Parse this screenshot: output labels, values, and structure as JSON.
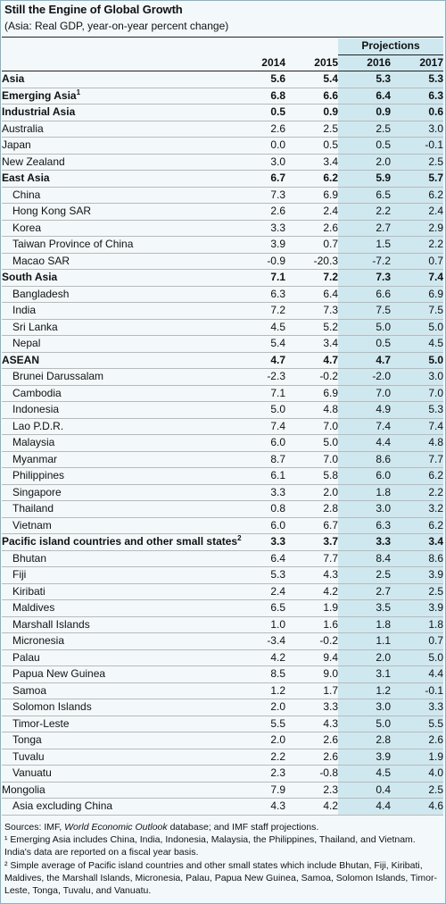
{
  "title": "Still the Engine of Global Growth",
  "subtitle": "(Asia: Real GDP, year-on-year percent change)",
  "projections_label": "Projections",
  "years": [
    "2014",
    "2015",
    "2016",
    "2017"
  ],
  "rows": [
    {
      "label": "Asia",
      "bold": true,
      "indent": false,
      "v": [
        "5.6",
        "5.4",
        "5.3",
        "5.3"
      ]
    },
    {
      "label": "Emerging Asia",
      "sup": "1",
      "bold": true,
      "indent": false,
      "v": [
        "6.8",
        "6.6",
        "6.4",
        "6.3"
      ]
    },
    {
      "label": "Industrial Asia",
      "bold": true,
      "indent": false,
      "v": [
        "0.5",
        "0.9",
        "0.9",
        "0.6"
      ]
    },
    {
      "label": "Australia",
      "bold": false,
      "indent": false,
      "v": [
        "2.6",
        "2.5",
        "2.5",
        "3.0"
      ]
    },
    {
      "label": "Japan",
      "bold": false,
      "indent": false,
      "v": [
        "0.0",
        "0.5",
        "0.5",
        "-0.1"
      ]
    },
    {
      "label": "New Zealand",
      "bold": false,
      "indent": false,
      "v": [
        "3.0",
        "3.4",
        "2.0",
        "2.5"
      ]
    },
    {
      "label": "East Asia",
      "bold": true,
      "indent": false,
      "v": [
        "6.7",
        "6.2",
        "5.9",
        "5.7"
      ]
    },
    {
      "label": "China",
      "bold": false,
      "indent": true,
      "v": [
        "7.3",
        "6.9",
        "6.5",
        "6.2"
      ]
    },
    {
      "label": "Hong Kong SAR",
      "bold": false,
      "indent": true,
      "v": [
        "2.6",
        "2.4",
        "2.2",
        "2.4"
      ]
    },
    {
      "label": "Korea",
      "bold": false,
      "indent": true,
      "v": [
        "3.3",
        "2.6",
        "2.7",
        "2.9"
      ]
    },
    {
      "label": "Taiwan Province of China",
      "bold": false,
      "indent": true,
      "v": [
        "3.9",
        "0.7",
        "1.5",
        "2.2"
      ]
    },
    {
      "label": "Macao SAR",
      "bold": false,
      "indent": true,
      "v": [
        "-0.9",
        "-20.3",
        "-7.2",
        "0.7"
      ]
    },
    {
      "label": "South Asia",
      "bold": true,
      "indent": false,
      "v": [
        "7.1",
        "7.2",
        "7.3",
        "7.4"
      ]
    },
    {
      "label": "Bangladesh",
      "bold": false,
      "indent": true,
      "v": [
        "6.3",
        "6.4",
        "6.6",
        "6.9"
      ]
    },
    {
      "label": "India",
      "bold": false,
      "indent": true,
      "v": [
        "7.2",
        "7.3",
        "7.5",
        "7.5"
      ]
    },
    {
      "label": "Sri Lanka",
      "bold": false,
      "indent": true,
      "v": [
        "4.5",
        "5.2",
        "5.0",
        "5.0"
      ]
    },
    {
      "label": "Nepal",
      "bold": false,
      "indent": true,
      "v": [
        "5.4",
        "3.4",
        "0.5",
        "4.5"
      ]
    },
    {
      "label": "ASEAN",
      "bold": true,
      "indent": false,
      "v": [
        "4.7",
        "4.7",
        "4.7",
        "5.0"
      ]
    },
    {
      "label": "Brunei Darussalam",
      "bold": false,
      "indent": true,
      "v": [
        "-2.3",
        "-0.2",
        "-2.0",
        "3.0"
      ]
    },
    {
      "label": "Cambodia",
      "bold": false,
      "indent": true,
      "v": [
        "7.1",
        "6.9",
        "7.0",
        "7.0"
      ]
    },
    {
      "label": "Indonesia",
      "bold": false,
      "indent": true,
      "v": [
        "5.0",
        "4.8",
        "4.9",
        "5.3"
      ]
    },
    {
      "label": "Lao P.D.R.",
      "bold": false,
      "indent": true,
      "v": [
        "7.4",
        "7.0",
        "7.4",
        "7.4"
      ]
    },
    {
      "label": "Malaysia",
      "bold": false,
      "indent": true,
      "v": [
        "6.0",
        "5.0",
        "4.4",
        "4.8"
      ]
    },
    {
      "label": "Myanmar",
      "bold": false,
      "indent": true,
      "v": [
        "8.7",
        "7.0",
        "8.6",
        "7.7"
      ]
    },
    {
      "label": "Philippines",
      "bold": false,
      "indent": true,
      "v": [
        "6.1",
        "5.8",
        "6.0",
        "6.2"
      ]
    },
    {
      "label": "Singapore",
      "bold": false,
      "indent": true,
      "v": [
        "3.3",
        "2.0",
        "1.8",
        "2.2"
      ]
    },
    {
      "label": "Thailand",
      "bold": false,
      "indent": true,
      "v": [
        "0.8",
        "2.8",
        "3.0",
        "3.2"
      ]
    },
    {
      "label": "Vietnam",
      "bold": false,
      "indent": true,
      "v": [
        "6.0",
        "6.7",
        "6.3",
        "6.2"
      ]
    },
    {
      "label": "Pacific island countries and other small states",
      "sup": "2",
      "bold": true,
      "indent": false,
      "v": [
        "3.3",
        "3.7",
        "3.3",
        "3.4"
      ]
    },
    {
      "label": "Bhutan",
      "bold": false,
      "indent": true,
      "v": [
        "6.4",
        "7.7",
        "8.4",
        "8.6"
      ]
    },
    {
      "label": "Fiji",
      "bold": false,
      "indent": true,
      "v": [
        "5.3",
        "4.3",
        "2.5",
        "3.9"
      ]
    },
    {
      "label": "Kiribati",
      "bold": false,
      "indent": true,
      "v": [
        "2.4",
        "4.2",
        "2.7",
        "2.5"
      ]
    },
    {
      "label": "Maldives",
      "bold": false,
      "indent": true,
      "v": [
        "6.5",
        "1.9",
        "3.5",
        "3.9"
      ]
    },
    {
      "label": "Marshall Islands",
      "bold": false,
      "indent": true,
      "v": [
        "1.0",
        "1.6",
        "1.8",
        "1.8"
      ]
    },
    {
      "label": "Micronesia",
      "bold": false,
      "indent": true,
      "v": [
        "-3.4",
        "-0.2",
        "1.1",
        "0.7"
      ]
    },
    {
      "label": "Palau",
      "bold": false,
      "indent": true,
      "v": [
        "4.2",
        "9.4",
        "2.0",
        "5.0"
      ]
    },
    {
      "label": "Papua New Guinea",
      "bold": false,
      "indent": true,
      "v": [
        "8.5",
        "9.0",
        "3.1",
        "4.4"
      ]
    },
    {
      "label": "Samoa",
      "bold": false,
      "indent": true,
      "v": [
        "1.2",
        "1.7",
        "1.2",
        "-0.1"
      ]
    },
    {
      "label": "Solomon Islands",
      "bold": false,
      "indent": true,
      "v": [
        "2.0",
        "3.3",
        "3.0",
        "3.3"
      ]
    },
    {
      "label": "Timor-Leste",
      "bold": false,
      "indent": true,
      "v": [
        "5.5",
        "4.3",
        "5.0",
        "5.5"
      ]
    },
    {
      "label": "Tonga",
      "bold": false,
      "indent": true,
      "v": [
        "2.0",
        "2.6",
        "2.8",
        "2.6"
      ]
    },
    {
      "label": "Tuvalu",
      "bold": false,
      "indent": true,
      "v": [
        "2.2",
        "2.6",
        "3.9",
        "1.9"
      ]
    },
    {
      "label": "Vanuatu",
      "bold": false,
      "indent": true,
      "v": [
        "2.3",
        "-0.8",
        "4.5",
        "4.0"
      ]
    },
    {
      "label": "Mongolia",
      "bold": false,
      "indent": false,
      "v": [
        "7.9",
        "2.3",
        "0.4",
        "2.5"
      ]
    },
    {
      "label": "Asia excluding China",
      "bold": false,
      "indent": true,
      "v": [
        "4.3",
        "4.2",
        "4.4",
        "4.6"
      ]
    }
  ],
  "sources": {
    "prefix": "Sources: IMF, ",
    "italic": "World Economic Outlook",
    "suffix": " database; and IMF staff projections.",
    "note1": "¹ Emerging Asia includes China, India, Indonesia, Malaysia, the Philippines, Thailand, and Vietnam. India's data are reported on a fiscal year basis.",
    "note2": "² Simple average of Pacific island countries and other small states which include Bhutan, Fiji, Kiribati, Maldives, the Marshall Islands, Micronesia, Palau, Papua New Guinea, Samoa, Solomon Islands, Timor-Leste, Tonga, Tuvalu, and Vanuatu."
  },
  "colors": {
    "projection_fill": "#cfe8f0",
    "frame_border": "#7fb6c9"
  }
}
